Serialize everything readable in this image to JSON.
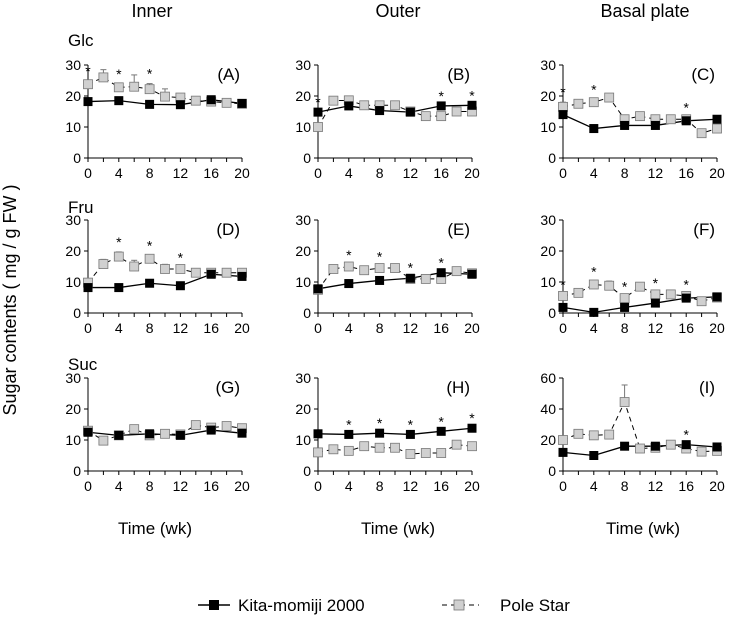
{
  "figure": {
    "y_axis_label": "Sugar contents ( mg / g FW )",
    "x_axis_label": "Time (wk)",
    "column_titles": [
      "Inner",
      "Outer",
      "Basal plate"
    ],
    "row_titles": [
      "Glc",
      "Fru",
      "Suc"
    ],
    "legend": [
      {
        "name": "Kita-momiji 2000",
        "marker": "filled-square",
        "line": "solid",
        "color": "#000000"
      },
      {
        "name": "Pole Star",
        "marker": "open-square",
        "line": "dashed",
        "color": "#d0d0d0"
      }
    ]
  },
  "chart_data": [
    {
      "type": "line",
      "panel": "(A)",
      "sugar": "Glc",
      "tissue": "Inner",
      "xticks": [
        0,
        4,
        8,
        12,
        16,
        20
      ],
      "ylim": [
        0,
        30
      ],
      "yticks": [
        0,
        10,
        20,
        30
      ],
      "series": [
        {
          "name": "Kita-momiji 2000",
          "x": [
            0,
            4,
            8,
            12,
            16,
            20
          ],
          "values": [
            18.2,
            18.5,
            17.3,
            17.2,
            18.8,
            17.6
          ]
        },
        {
          "name": "Pole Star",
          "x": [
            0,
            2,
            4,
            6,
            8,
            10,
            12,
            14,
            16,
            18,
            20
          ],
          "values": [
            23.8,
            26.0,
            22.8,
            23.0,
            22.2,
            19.8,
            19.5,
            18.5,
            18.2,
            17.8,
            17.5
          ],
          "errors": [
            1.0,
            2.5,
            1.0,
            3.8,
            1.8,
            2.5,
            0.8,
            0.5,
            0.5,
            0.5,
            0.5
          ]
        }
      ],
      "significance_x": [
        0,
        4,
        8
      ]
    },
    {
      "type": "line",
      "panel": "(B)",
      "sugar": "Glc",
      "tissue": "Outer",
      "xticks": [
        0,
        4,
        8,
        12,
        16,
        20
      ],
      "ylim": [
        0,
        30
      ],
      "yticks": [
        0,
        10,
        20,
        30
      ],
      "series": [
        {
          "name": "Kita-momiji 2000",
          "x": [
            0,
            4,
            8,
            12,
            16,
            20
          ],
          "values": [
            14.8,
            16.8,
            15.3,
            14.8,
            16.8,
            17.0
          ]
        },
        {
          "name": "Pole Star",
          "x": [
            0,
            2,
            4,
            6,
            8,
            10,
            12,
            14,
            16,
            18,
            20
          ],
          "values": [
            10.0,
            18.5,
            18.6,
            17.0,
            17.0,
            17.0,
            15.0,
            13.5,
            13.5,
            15.0,
            15.0
          ],
          "errors": [
            0.5,
            0.5,
            0.5,
            0.5,
            0.5,
            0.5,
            0.5,
            0.5,
            0.5,
            0.5,
            0.5
          ]
        }
      ],
      "significance_x": [
        0,
        16,
        20
      ]
    },
    {
      "type": "line",
      "panel": "(C)",
      "sugar": "Glc",
      "tissue": "Basal plate",
      "xticks": [
        0,
        4,
        8,
        12,
        16,
        20
      ],
      "ylim": [
        0,
        30
      ],
      "yticks": [
        0,
        10,
        20,
        30
      ],
      "series": [
        {
          "name": "Kita-momiji 2000",
          "x": [
            0,
            4,
            8,
            12,
            16,
            20
          ],
          "values": [
            14.0,
            9.5,
            10.5,
            10.5,
            12.0,
            12.5
          ]
        },
        {
          "name": "Pole Star",
          "x": [
            0,
            2,
            4,
            6,
            8,
            10,
            12,
            14,
            16,
            18,
            20
          ],
          "values": [
            16.5,
            17.5,
            18.0,
            19.5,
            12.5,
            13.5,
            12.5,
            12.5,
            12.5,
            8.0,
            9.5
          ],
          "errors": [
            1.5,
            0.5,
            0.8,
            1.0,
            0.5,
            0.5,
            0.5,
            0.5,
            0.5,
            0.5,
            0.5
          ]
        }
      ],
      "significance_x": [
        0,
        4,
        16
      ]
    },
    {
      "type": "line",
      "panel": "(D)",
      "sugar": "Fru",
      "tissue": "Inner",
      "xticks": [
        0,
        4,
        8,
        12,
        16,
        20
      ],
      "ylim": [
        0,
        30
      ],
      "yticks": [
        0,
        10,
        20,
        30
      ],
      "series": [
        {
          "name": "Kita-momiji 2000",
          "x": [
            0,
            4,
            8,
            12,
            16,
            20
          ],
          "values": [
            8.2,
            8.2,
            9.6,
            8.8,
            12.5,
            11.8
          ]
        },
        {
          "name": "Pole Star",
          "x": [
            0,
            2,
            4,
            6,
            8,
            10,
            12,
            14,
            16,
            18,
            20
          ],
          "values": [
            9.8,
            15.8,
            18.2,
            15.0,
            17.5,
            14.2,
            14.2,
            13.0,
            13.0,
            13.0,
            13.0
          ],
          "errors": [
            0.5,
            1.5,
            1.5,
            2.0,
            1.0,
            1.5,
            0.5,
            0.5,
            0.5,
            0.5,
            0.5
          ]
        }
      ],
      "significance_x": [
        4,
        8,
        12
      ]
    },
    {
      "type": "line",
      "panel": "(E)",
      "sugar": "Fru",
      "tissue": "Outer",
      "xticks": [
        0,
        4,
        8,
        12,
        16,
        20
      ],
      "ylim": [
        0,
        30
      ],
      "yticks": [
        0,
        10,
        20,
        30
      ],
      "series": [
        {
          "name": "Kita-momiji 2000",
          "x": [
            0,
            4,
            8,
            12,
            16,
            20
          ],
          "values": [
            7.8,
            9.5,
            10.5,
            11.2,
            13.0,
            12.5
          ]
        },
        {
          "name": "Pole Star",
          "x": [
            0,
            2,
            4,
            6,
            8,
            10,
            12,
            14,
            16,
            18,
            20
          ],
          "values": [
            7.5,
            14.2,
            15.0,
            13.8,
            14.5,
            14.5,
            11.0,
            11.0,
            11.0,
            13.5,
            12.8
          ],
          "errors": [
            0.5,
            0.5,
            0.5,
            0.5,
            0.5,
            0.5,
            0.5,
            0.5,
            0.5,
            0.5,
            0.5
          ]
        }
      ],
      "significance_x": [
        4,
        8,
        12,
        16
      ]
    },
    {
      "type": "line",
      "panel": "(F)",
      "sugar": "Fru",
      "tissue": "Basal plate",
      "xticks": [
        0,
        4,
        8,
        12,
        16,
        20
      ],
      "ylim": [
        0,
        30
      ],
      "yticks": [
        0,
        10,
        20,
        30
      ],
      "series": [
        {
          "name": "Kita-momiji 2000",
          "x": [
            0,
            4,
            8,
            12,
            16,
            20
          ],
          "values": [
            1.8,
            0.2,
            1.8,
            3.2,
            4.8,
            5.2
          ]
        },
        {
          "name": "Pole Star",
          "x": [
            0,
            2,
            4,
            6,
            8,
            10,
            12,
            14,
            16,
            18,
            20
          ],
          "values": [
            5.5,
            6.5,
            9.2,
            8.8,
            4.8,
            8.5,
            6.0,
            6.0,
            5.5,
            3.8,
            5.0
          ],
          "errors": [
            0.5,
            0.5,
            1.0,
            1.5,
            0.5,
            0.5,
            0.5,
            0.5,
            0.5,
            0.5,
            0.5
          ]
        }
      ],
      "significance_x": [
        0,
        4,
        8,
        12,
        16
      ]
    },
    {
      "type": "line",
      "panel": "(G)",
      "sugar": "Suc",
      "tissue": "Inner",
      "xticks": [
        0,
        4,
        8,
        12,
        16,
        20
      ],
      "ylim": [
        0,
        30
      ],
      "yticks": [
        0,
        10,
        20,
        30
      ],
      "series": [
        {
          "name": "Kita-momiji 2000",
          "x": [
            0,
            4,
            8,
            12,
            16,
            20
          ],
          "values": [
            12.5,
            11.5,
            12.0,
            11.5,
            13.2,
            12.2
          ]
        },
        {
          "name": "Pole Star",
          "x": [
            0,
            2,
            4,
            6,
            8,
            10,
            12,
            14,
            16,
            18,
            20
          ],
          "values": [
            13.0,
            9.8,
            11.5,
            13.5,
            11.5,
            12.0,
            11.8,
            14.8,
            14.0,
            14.5,
            13.8
          ],
          "errors": [
            0.5,
            0.5,
            0.5,
            0.5,
            0.5,
            0.5,
            0.5,
            0.5,
            0.5,
            0.5,
            0.5
          ]
        }
      ],
      "significance_x": []
    },
    {
      "type": "line",
      "panel": "(H)",
      "sugar": "Suc",
      "tissue": "Outer",
      "xticks": [
        0,
        4,
        8,
        12,
        16,
        20
      ],
      "ylim": [
        0,
        30
      ],
      "yticks": [
        0,
        10,
        20,
        30
      ],
      "series": [
        {
          "name": "Kita-momiji 2000",
          "x": [
            0,
            4,
            8,
            12,
            16,
            20
          ],
          "values": [
            12.0,
            11.8,
            12.2,
            11.8,
            12.8,
            13.8
          ]
        },
        {
          "name": "Pole Star",
          "x": [
            0,
            2,
            4,
            6,
            8,
            10,
            12,
            14,
            16,
            18,
            20
          ],
          "values": [
            6.0,
            7.0,
            6.5,
            8.0,
            7.5,
            7.5,
            5.5,
            5.8,
            5.8,
            8.5,
            8.0
          ],
          "errors": [
            0.5,
            0.5,
            0.5,
            0.5,
            0.5,
            0.5,
            0.5,
            0.5,
            0.5,
            0.5,
            0.5
          ]
        }
      ],
      "significance_x": [
        4,
        8,
        12,
        16,
        20
      ]
    },
    {
      "type": "line",
      "panel": "(I)",
      "sugar": "Suc",
      "tissue": "Basal plate",
      "xticks": [
        0,
        4,
        8,
        12,
        16,
        20
      ],
      "ylim": [
        0,
        60
      ],
      "yticks": [
        0,
        20,
        40,
        60
      ],
      "series": [
        {
          "name": "Kita-momiji 2000",
          "x": [
            0,
            4,
            8,
            12,
            16,
            20
          ],
          "values": [
            12.0,
            10.0,
            16.0,
            16.0,
            17.0,
            15.5
          ]
        },
        {
          "name": "Pole Star",
          "x": [
            0,
            2,
            4,
            6,
            8,
            10,
            12,
            14,
            16,
            18,
            20
          ],
          "values": [
            20.0,
            24.0,
            23.0,
            23.5,
            44.5,
            14.5,
            15.0,
            17.0,
            14.5,
            12.5,
            13.0
          ],
          "errors": [
            0.8,
            0.8,
            0.8,
            0.8,
            11.0,
            0.8,
            0.8,
            0.8,
            0.8,
            0.8,
            0.8
          ]
        }
      ],
      "significance_x": [
        16
      ]
    }
  ]
}
